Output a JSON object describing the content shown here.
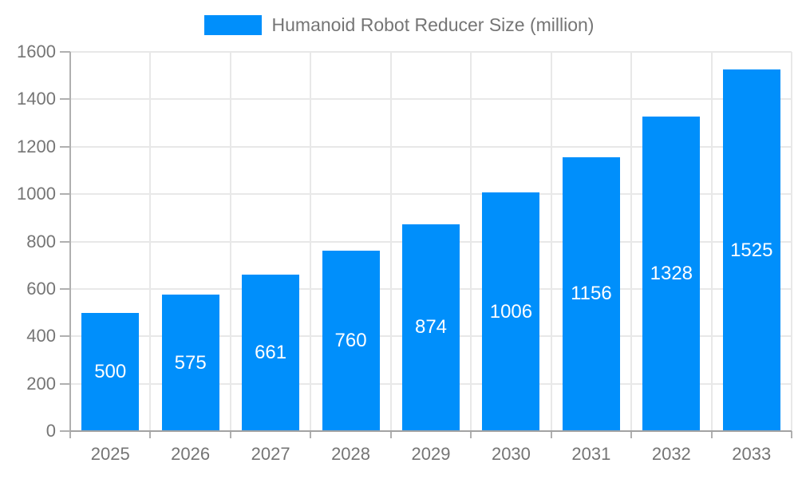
{
  "legend": {
    "label": "Humanoid Robot Reducer Size (million)"
  },
  "colors": {
    "bar": "#008FFB",
    "bar_label_text": "#FFFFFF",
    "axis_text": "#757575",
    "legend_text": "#757575",
    "grid_line": "#E8E8E8",
    "axis_line": "#A3A3A3",
    "tick": "#B0B0B0",
    "background": "#FFFFFF"
  },
  "chart_data": {
    "type": "bar",
    "title": "Humanoid Robot Reducer Size (million)",
    "series_name": "Humanoid Robot Reducer Size (million)",
    "categories": [
      "2025",
      "2026",
      "2027",
      "2028",
      "2029",
      "2030",
      "2031",
      "2032",
      "2033"
    ],
    "values": [
      500,
      575,
      661,
      760,
      874,
      1006,
      1156,
      1328,
      1525
    ],
    "xlabel": "",
    "ylabel": "",
    "ylim": [
      0,
      1600
    ],
    "yticks": [
      0,
      200,
      400,
      600,
      800,
      1000,
      1200,
      1400,
      1600
    ],
    "grid": true,
    "legend_position": "top",
    "data_labels": "inside-center"
  }
}
